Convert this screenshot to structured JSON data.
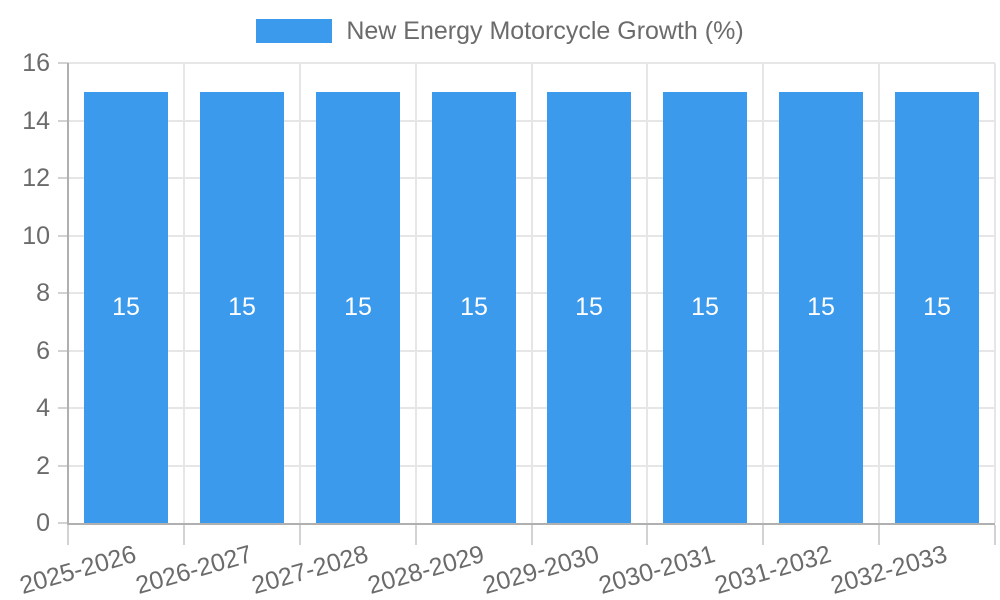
{
  "legend": {
    "label": "New Energy Motorcycle Growth (%)"
  },
  "chart_data": {
    "type": "bar",
    "title": "",
    "xlabel": "",
    "ylabel": "",
    "categories": [
      "2025-2026",
      "2026-2027",
      "2027-2028",
      "2028-2029",
      "2029-2030",
      "2030-2031",
      "2031-2032",
      "2032-2033"
    ],
    "series": [
      {
        "name": "New Energy Motorcycle Growth (%)",
        "values": [
          15,
          15,
          15,
          15,
          15,
          15,
          15,
          15
        ]
      }
    ],
    "data_labels": [
      "15",
      "15",
      "15",
      "15",
      "15",
      "15",
      "15",
      "15"
    ],
    "ylim": [
      0,
      16
    ],
    "ytick_step": 2,
    "yticks": [
      0,
      2,
      4,
      6,
      8,
      10,
      12,
      14,
      16
    ],
    "grid": true,
    "legend_position": "top"
  },
  "colors": {
    "bar": "#3b9aec",
    "bar_label": "#ffffff",
    "grid_line": "#e6e6e6",
    "tick_line": "#d2d2d2",
    "axis_line": "#b0b0b0",
    "text": "#6b6b6b",
    "background": "#ffffff"
  }
}
